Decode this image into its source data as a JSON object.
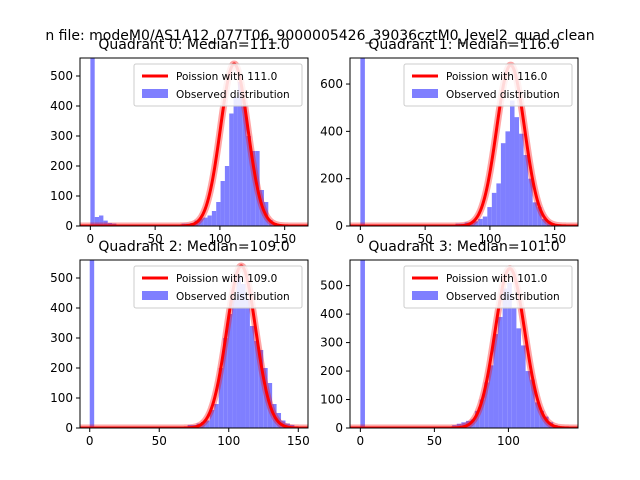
{
  "figure": {
    "suptitle": "n file: modeM0/AS1A12_077T06_9000005426_39036cztM0_level2_quad_clean",
    "colors": {
      "hist": "#7f7fff",
      "poisson": "#ff0000",
      "legend_border": "#cccccc",
      "text": "#000000"
    }
  },
  "chart_data": [
    {
      "type": "bar",
      "title": "Quadrant 0: Median=111.0",
      "xlim": [
        -8,
        168
      ],
      "ylim": [
        0,
        560
      ],
      "xticks": [
        0,
        50,
        100,
        150
      ],
      "yticks": [
        0,
        100,
        200,
        300,
        400,
        500
      ],
      "legend": {
        "position": "top-right",
        "entries": [
          "Poission with 111.0",
          "Observed distribution"
        ]
      },
      "poisson_mean": 111.0,
      "poisson_peak": 540,
      "bin_width": 3.35,
      "bins": [
        {
          "x": 0,
          "value": 560
        },
        {
          "x": 3.35,
          "value": 30
        },
        {
          "x": 6.7,
          "value": 35
        },
        {
          "x": 10.05,
          "value": 18
        },
        {
          "x": 13.4,
          "value": 10
        },
        {
          "x": 16.75,
          "value": 8
        },
        {
          "x": 20.1,
          "value": 5
        },
        {
          "x": 23.45,
          "value": 5
        },
        {
          "x": 26.8,
          "value": 5
        },
        {
          "x": 30.15,
          "value": 5
        },
        {
          "x": 33.5,
          "value": 5
        },
        {
          "x": 36.85,
          "value": 5
        },
        {
          "x": 40.2,
          "value": 5
        },
        {
          "x": 43.55,
          "value": 5
        },
        {
          "x": 46.9,
          "value": 5
        },
        {
          "x": 50.25,
          "value": 5
        },
        {
          "x": 53.6,
          "value": 5
        },
        {
          "x": 56.95,
          "value": 5
        },
        {
          "x": 60.3,
          "value": 5
        },
        {
          "x": 63.65,
          "value": 5
        },
        {
          "x": 67.0,
          "value": 5
        },
        {
          "x": 70.35,
          "value": 8
        },
        {
          "x": 73.7,
          "value": 8
        },
        {
          "x": 77.05,
          "value": 10
        },
        {
          "x": 80.4,
          "value": 18
        },
        {
          "x": 83.75,
          "value": 25
        },
        {
          "x": 87.1,
          "value": 28
        },
        {
          "x": 90.45,
          "value": 35
        },
        {
          "x": 93.8,
          "value": 50
        },
        {
          "x": 97.15,
          "value": 80
        },
        {
          "x": 100.5,
          "value": 150
        },
        {
          "x": 103.85,
          "value": 200
        },
        {
          "x": 107.2,
          "value": 375
        },
        {
          "x": 110.55,
          "value": 430
        },
        {
          "x": 113.9,
          "value": 480
        },
        {
          "x": 117.25,
          "value": 400
        },
        {
          "x": 120.6,
          "value": 300
        },
        {
          "x": 123.95,
          "value": 250
        },
        {
          "x": 127.3,
          "value": 250
        },
        {
          "x": 130.65,
          "value": 120
        },
        {
          "x": 134.0,
          "value": 80
        },
        {
          "x": 137.35,
          "value": 20
        },
        {
          "x": 140.7,
          "value": 10
        },
        {
          "x": 144.05,
          "value": 5
        },
        {
          "x": 147.4,
          "value": 5
        },
        {
          "x": 150.75,
          "value": 5
        },
        {
          "x": 154.1,
          "value": 5
        },
        {
          "x": 157.45,
          "value": 3
        }
      ]
    },
    {
      "type": "bar",
      "title": "Quadrant 1: Median=116.0",
      "xlim": [
        -8,
        168
      ],
      "ylim": [
        0,
        710
      ],
      "xticks": [
        0,
        50,
        100,
        150
      ],
      "yticks": [
        0,
        200,
        400,
        600
      ],
      "legend": {
        "position": "top-right",
        "entries": [
          "Poission with 116.0",
          "Observed distribution"
        ]
      },
      "poisson_mean": 116.0,
      "poisson_peak": 680,
      "bin_width": 3.5,
      "bins": [
        {
          "x": 0,
          "value": 710
        },
        {
          "x": 3.5,
          "value": 5
        },
        {
          "x": 7.0,
          "value": 3
        },
        {
          "x": 70.0,
          "value": 5
        },
        {
          "x": 73.5,
          "value": 10
        },
        {
          "x": 77.0,
          "value": 10
        },
        {
          "x": 80.5,
          "value": 15
        },
        {
          "x": 84.0,
          "value": 15
        },
        {
          "x": 87.5,
          "value": 20
        },
        {
          "x": 91.0,
          "value": 30
        },
        {
          "x": 94.5,
          "value": 40
        },
        {
          "x": 98.0,
          "value": 80
        },
        {
          "x": 101.5,
          "value": 140
        },
        {
          "x": 105.0,
          "value": 180
        },
        {
          "x": 108.5,
          "value": 350
        },
        {
          "x": 112.0,
          "value": 400
        },
        {
          "x": 115.5,
          "value": 530
        },
        {
          "x": 119.0,
          "value": 460
        },
        {
          "x": 122.5,
          "value": 390
        },
        {
          "x": 126.0,
          "value": 300
        },
        {
          "x": 129.5,
          "value": 200
        },
        {
          "x": 133.0,
          "value": 100
        },
        {
          "x": 136.5,
          "value": 80
        },
        {
          "x": 140.0,
          "value": 30
        },
        {
          "x": 143.5,
          "value": 20
        },
        {
          "x": 147.0,
          "value": 10
        },
        {
          "x": 150.5,
          "value": 5
        }
      ]
    },
    {
      "type": "bar",
      "title": "Quadrant 2: Median=109.0",
      "xlim": [
        -7,
        157
      ],
      "ylim": [
        0,
        560
      ],
      "xticks": [
        0,
        50,
        100,
        150
      ],
      "yticks": [
        0,
        100,
        200,
        300,
        400,
        500
      ],
      "legend": {
        "position": "top-right",
        "entries": [
          "Poission with 109.0",
          "Observed distribution"
        ]
      },
      "poisson_mean": 109.0,
      "poisson_peak": 540,
      "bin_width": 3.2,
      "bins": [
        {
          "x": 0,
          "value": 560
        },
        {
          "x": 3.2,
          "value": 5
        },
        {
          "x": 64.0,
          "value": 5
        },
        {
          "x": 67.2,
          "value": 5
        },
        {
          "x": 70.4,
          "value": 10
        },
        {
          "x": 73.6,
          "value": 10
        },
        {
          "x": 76.8,
          "value": 15
        },
        {
          "x": 80.0,
          "value": 20
        },
        {
          "x": 83.2,
          "value": 25
        },
        {
          "x": 86.4,
          "value": 60
        },
        {
          "x": 89.6,
          "value": 80
        },
        {
          "x": 92.8,
          "value": 200
        },
        {
          "x": 96.0,
          "value": 300
        },
        {
          "x": 99.2,
          "value": 380
        },
        {
          "x": 102.4,
          "value": 430
        },
        {
          "x": 105.6,
          "value": 510
        },
        {
          "x": 108.8,
          "value": 480
        },
        {
          "x": 112.0,
          "value": 430
        },
        {
          "x": 115.2,
          "value": 340
        },
        {
          "x": 118.4,
          "value": 290
        },
        {
          "x": 121.6,
          "value": 260
        },
        {
          "x": 124.8,
          "value": 200
        },
        {
          "x": 128.0,
          "value": 150
        },
        {
          "x": 131.2,
          "value": 80
        },
        {
          "x": 134.4,
          "value": 50
        },
        {
          "x": 137.6,
          "value": 25
        },
        {
          "x": 140.8,
          "value": 15
        },
        {
          "x": 144.0,
          "value": 10
        },
        {
          "x": 147.2,
          "value": 5
        }
      ]
    },
    {
      "type": "bar",
      "title": "Quadrant 3: Median=101.0",
      "xlim": [
        -7,
        147
      ],
      "ylim": [
        0,
        590
      ],
      "xticks": [
        0,
        50,
        100
      ],
      "yticks": [
        0,
        100,
        200,
        300,
        400,
        500
      ],
      "legend": {
        "position": "top-right",
        "entries": [
          "Poission with 101.0",
          "Observed distribution"
        ]
      },
      "poisson_mean": 101.0,
      "poisson_peak": 560,
      "bin_width": 3.1,
      "bins": [
        {
          "x": 0,
          "value": 590
        },
        {
          "x": 3.1,
          "value": 5
        },
        {
          "x": 55.8,
          "value": 5
        },
        {
          "x": 58.9,
          "value": 5
        },
        {
          "x": 62.0,
          "value": 10
        },
        {
          "x": 65.1,
          "value": 15
        },
        {
          "x": 68.2,
          "value": 20
        },
        {
          "x": 71.3,
          "value": 25
        },
        {
          "x": 74.4,
          "value": 30
        },
        {
          "x": 77.5,
          "value": 60
        },
        {
          "x": 80.6,
          "value": 100
        },
        {
          "x": 83.7,
          "value": 160
        },
        {
          "x": 86.8,
          "value": 220
        },
        {
          "x": 89.9,
          "value": 330
        },
        {
          "x": 93.0,
          "value": 390
        },
        {
          "x": 96.1,
          "value": 490
        },
        {
          "x": 99.2,
          "value": 510
        },
        {
          "x": 102.3,
          "value": 420
        },
        {
          "x": 105.4,
          "value": 350
        },
        {
          "x": 108.5,
          "value": 290
        },
        {
          "x": 111.6,
          "value": 200
        },
        {
          "x": 114.7,
          "value": 170
        },
        {
          "x": 117.8,
          "value": 90
        },
        {
          "x": 120.9,
          "value": 60
        },
        {
          "x": 124.0,
          "value": 40
        },
        {
          "x": 127.1,
          "value": 20
        },
        {
          "x": 130.2,
          "value": 10
        },
        {
          "x": 133.3,
          "value": 5
        }
      ]
    }
  ]
}
